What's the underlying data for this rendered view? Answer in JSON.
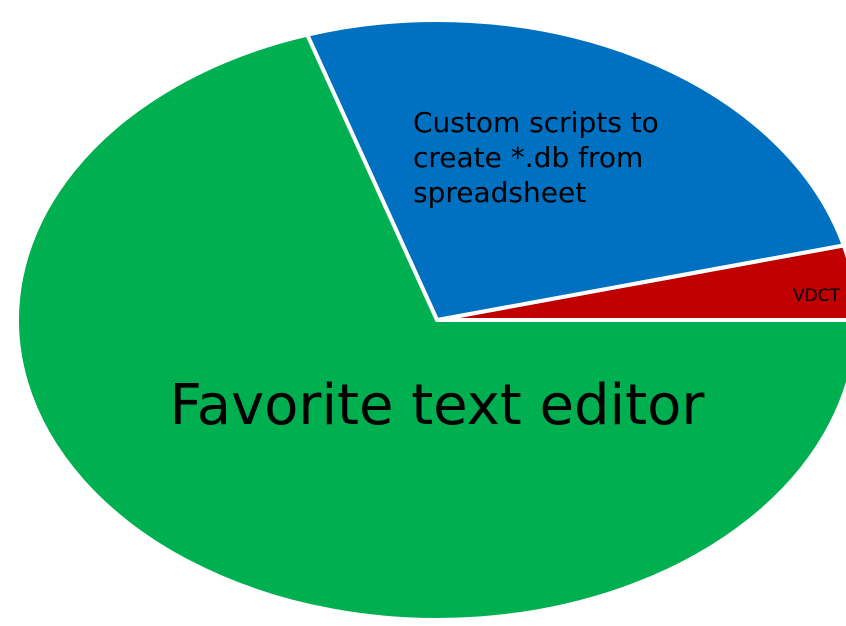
{
  "chart_data": {
    "type": "pie",
    "categories": [
      "VDCT",
      "Custom scripts to create *.db from spreadsheet",
      "Favorite text editor"
    ],
    "values": [
      4,
      26,
      70
    ],
    "colors": [
      "#c00000",
      "#0070c0",
      "#00b050"
    ]
  }
}
